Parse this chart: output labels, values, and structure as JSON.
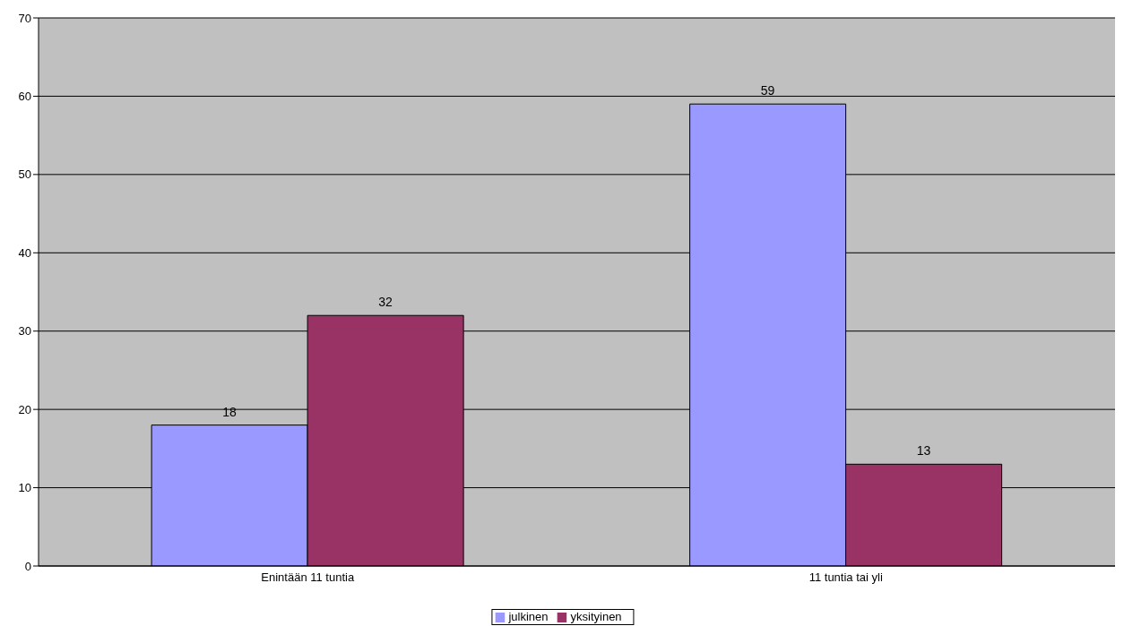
{
  "chart_data": {
    "type": "bar",
    "categories": [
      "Enintään 11 tuntia",
      "11 tuntia tai yli"
    ],
    "series": [
      {
        "name": "julkinen",
        "color": "#9999ff",
        "values": [
          18,
          59
        ]
      },
      {
        "name": "yksityinen",
        "color": "#993366",
        "values": [
          32,
          13
        ]
      }
    ],
    "ylim": [
      0,
      70
    ],
    "yticks": [
      0,
      10,
      20,
      30,
      40,
      50,
      60,
      70
    ],
    "grid": "y",
    "legend": "bottom",
    "data_labels": true
  }
}
